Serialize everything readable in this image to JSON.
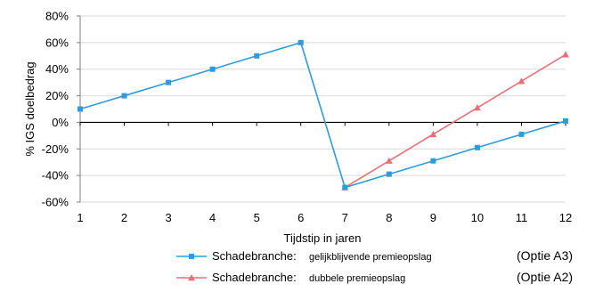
{
  "chart_data": {
    "type": "line",
    "xlabel": "Tijdstip in jaren",
    "ylabel": "% IGS doelbedrag",
    "ylim": [
      -60,
      80
    ],
    "xlim": [
      1,
      12
    ],
    "x_ticks": [
      1,
      2,
      3,
      4,
      5,
      6,
      7,
      8,
      9,
      10,
      11,
      12
    ],
    "y_ticks": [
      80,
      60,
      40,
      20,
      0,
      -20,
      -40,
      -60
    ],
    "y_tick_labels": [
      "80%",
      "60%",
      "40%",
      "20%",
      "0%",
      "-20%",
      "-40%",
      "-60%"
    ],
    "grid": "horizontal",
    "legend_position": "bottom",
    "series": [
      {
        "name": "Schadebranche:",
        "detail": "gelijkblijvende premieopslag",
        "tag": "(Optie A3)",
        "color": "#2E9BDA",
        "marker": "square",
        "x": [
          1,
          2,
          3,
          4,
          5,
          6,
          7,
          8,
          9,
          10,
          11,
          12
        ],
        "values": [
          10,
          20,
          30,
          40,
          50,
          60,
          -49,
          -39,
          -29,
          -19,
          -9,
          1
        ]
      },
      {
        "name": "Schadebranche:",
        "detail": "dubbele premieopslag",
        "tag": "(Optie A2)",
        "color": "#E8707A",
        "marker": "triangle",
        "x": [
          7,
          8,
          9,
          10,
          11,
          12
        ],
        "values": [
          -49,
          -29,
          -9,
          11,
          31,
          51
        ]
      }
    ]
  }
}
